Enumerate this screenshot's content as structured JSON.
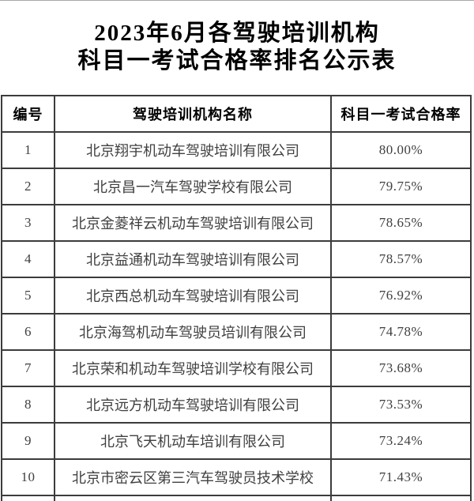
{
  "title": {
    "line1": "2023年6月各驾驶培训机构",
    "line2": "科目一考试合格率排名公示表"
  },
  "table": {
    "headers": [
      "编号",
      "驾驶培训机构名称",
      "科目一考试合格率"
    ],
    "rows": [
      {
        "no": "1",
        "name": "北京翔宇机动车驾驶培训有限公司",
        "rate": "80.00%"
      },
      {
        "no": "2",
        "name": "北京昌一汽车驾驶学校有限公司",
        "rate": "79.75%"
      },
      {
        "no": "3",
        "name": "北京金菱祥云机动车驾驶培训有限公司",
        "rate": "78.65%"
      },
      {
        "no": "4",
        "name": "北京益通机动车驾驶培训有限公司",
        "rate": "78.57%"
      },
      {
        "no": "5",
        "name": "北京西总机动车驾驶培训有限公司",
        "rate": "76.92%"
      },
      {
        "no": "6",
        "name": "北京海驾机动车驾驶员培训有限公司",
        "rate": "74.78%"
      },
      {
        "no": "7",
        "name": "北京荣和机动车驾驶培训学校有限公司",
        "rate": "73.68%"
      },
      {
        "no": "8",
        "name": "北京远方机动车驾驶培训有限公司",
        "rate": "73.53%"
      },
      {
        "no": "9",
        "name": "北京飞天机动车培训有限公司",
        "rate": "73.24%"
      },
      {
        "no": "10",
        "name": "北京市密云区第三汽车驾驶员技术学校",
        "rate": "71.43%"
      }
    ]
  },
  "colors": {
    "border": "#3c3c3c",
    "header-text": "#000000",
    "body-text": "#404040",
    "top-rule": "#a9a9a9"
  }
}
